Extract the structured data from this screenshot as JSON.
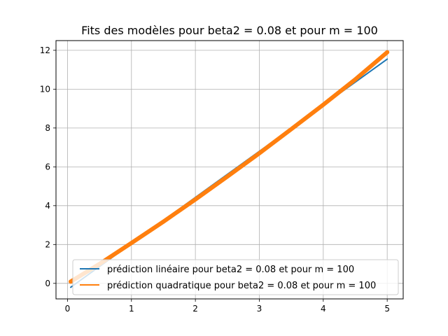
{
  "chart_data": {
    "type": "line",
    "title": "Fits des modèles pour beta2 = 0.08 et pour m = 100",
    "xlabel": "",
    "ylabel": "",
    "xlim": [
      -0.18,
      5.25
    ],
    "ylim": [
      -0.8,
      12.5
    ],
    "xticks": [
      0,
      1,
      2,
      3,
      4,
      5
    ],
    "yticks": [
      0,
      2,
      4,
      6,
      8,
      10,
      12
    ],
    "grid": true,
    "legend_position": "lower-right",
    "series": [
      {
        "name": "prédiction linéaire pour beta2 = 0.08 et pour m = 100",
        "color": "#1f77b4",
        "x": [
          0.05,
          5.0
        ],
        "y": [
          -0.2,
          11.55
        ]
      },
      {
        "name": "prédiction quadratique pour beta2 = 0.08 et pour m = 100",
        "color": "#ff7f0e",
        "x": [
          0.05,
          0.5,
          1.0,
          1.5,
          2.0,
          2.5,
          3.0,
          3.5,
          4.0,
          4.5,
          5.0
        ],
        "y": [
          0.09,
          1.0,
          2.08,
          3.18,
          4.32,
          5.5,
          6.7,
          7.94,
          9.2,
          10.5,
          11.9
        ]
      }
    ]
  }
}
